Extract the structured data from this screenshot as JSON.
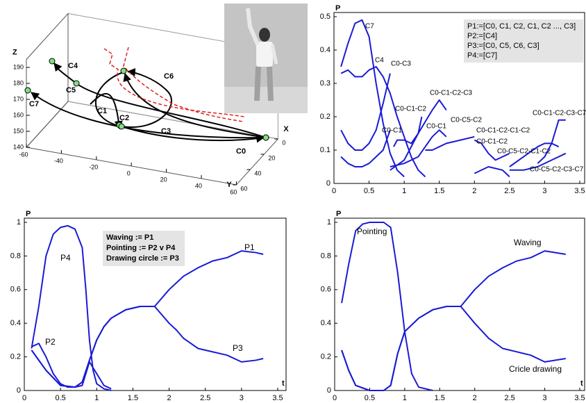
{
  "chart_data": [
    {
      "type": "trajectory3d",
      "xlabel": "X",
      "ylabel": "Y",
      "zlabel": "Z",
      "xlim": [
        0,
        60
      ],
      "ylim": [
        -60,
        60
      ],
      "zlim": [
        140,
        195
      ],
      "xticks": [
        0,
        20,
        40,
        60
      ],
      "yticks": [
        -60,
        -40,
        -20,
        0,
        20,
        40,
        60
      ],
      "zticks": [
        140,
        150,
        160,
        170,
        180,
        190
      ],
      "nodes": [
        "C0",
        "C1",
        "C2",
        "C3",
        "C4",
        "C5",
        "C6",
        "C7"
      ]
    },
    {
      "type": "line",
      "ylabel": "P",
      "color": "#1a1ad6",
      "xlim": [
        0,
        3.5
      ],
      "ylim": [
        0,
        0.5
      ],
      "xticks": [
        0,
        0.5,
        1,
        1.5,
        2,
        2.5,
        3,
        3.5
      ],
      "yticks": [
        0,
        0.1,
        0.2,
        0.3,
        0.4,
        0.5
      ],
      "legend_text": [
        "P1:=[C0, C1, C2, C1, C2 ..., C3]",
        "P2:=[C4]",
        "P3:=[C0, C5, C6, C3]",
        "P4:=[C7]"
      ],
      "series": [
        {
          "name": "C7",
          "x": [
            0.1,
            0.2,
            0.3,
            0.4,
            0.5,
            0.6,
            0.7,
            0.8,
            0.9,
            1.0
          ],
          "values": [
            0.35,
            0.42,
            0.48,
            0.49,
            0.44,
            0.3,
            0.18,
            0.09,
            0.04,
            0.02
          ]
        },
        {
          "name": "C4",
          "x": [
            0.1,
            0.2,
            0.3,
            0.4,
            0.5,
            0.6,
            0.7,
            0.8,
            0.9,
            1.0,
            1.1,
            1.2,
            1.3
          ],
          "values": [
            0.33,
            0.34,
            0.32,
            0.32,
            0.34,
            0.35,
            0.32,
            0.27,
            0.2,
            0.14,
            0.08,
            0.04,
            0.02
          ]
        },
        {
          "name": "C0-C3",
          "x": [
            0.1,
            0.2,
            0.3,
            0.4,
            0.5,
            0.6,
            0.7,
            0.8
          ],
          "values": [
            0.16,
            0.12,
            0.1,
            0.1,
            0.12,
            0.16,
            0.24,
            0.33
          ]
        },
        {
          "name": "C0-C1",
          "x": [
            0.1,
            0.2,
            0.3,
            0.4,
            0.5,
            0.6,
            0.7,
            0.8
          ],
          "values": [
            0.08,
            0.06,
            0.05,
            0.05,
            0.06,
            0.08,
            0.1,
            0.16
          ]
        },
        {
          "name": "C0-C1-C2",
          "x": [
            0.85,
            0.9,
            1.0,
            1.1,
            1.2,
            1.25
          ],
          "values": [
            0.11,
            0.13,
            0.13,
            0.12,
            0.15,
            0.2
          ]
        },
        {
          "name": "C0-C1-C2-C3",
          "x": [
            0.8,
            1.0,
            1.2,
            1.4,
            1.5,
            1.6
          ],
          "values": [
            0.04,
            0.07,
            0.15,
            0.22,
            0.25,
            0.22
          ]
        },
        {
          "name": "C0-C1",
          "x": [
            0.8,
            1.0,
            1.2,
            1.4,
            1.5,
            1.6
          ],
          "values": [
            0.05,
            0.06,
            0.08,
            0.14,
            0.16,
            0.14
          ]
        },
        {
          "name": "C0-C5-C2",
          "x": [
            1.3,
            1.4,
            1.6,
            1.8,
            2.0
          ],
          "values": [
            0.1,
            0.1,
            0.12,
            0.13,
            0.14
          ]
        },
        {
          "name": "C0-C1-C2-C1-C2",
          "x": [
            2.0,
            2.1,
            2.2,
            2.3,
            2.4,
            2.5
          ],
          "values": [
            0.13,
            0.12,
            0.09,
            0.07,
            0.08,
            0.09
          ]
        },
        {
          "name": "C0-C1-C2",
          "x": [
            2.0,
            2.2,
            2.4,
            2.5
          ],
          "values": [
            0.03,
            0.05,
            0.04,
            0.02
          ]
        },
        {
          "name": "C0-C5-C2-C1-C2",
          "x": [
            2.5,
            2.7,
            2.9,
            3.0,
            3.1,
            3.2
          ],
          "values": [
            0.05,
            0.08,
            0.11,
            0.12,
            0.12,
            0.11
          ]
        },
        {
          "name": "C0-C1-C2-C3-C7",
          "x": [
            2.9,
            3.0,
            3.1,
            3.2,
            3.3
          ],
          "values": [
            0.06,
            0.08,
            0.12,
            0.19,
            0.19
          ]
        },
        {
          "name": "C0-C5-C2-C3-C7",
          "x": [
            2.5,
            2.7,
            2.9,
            3.1,
            3.3
          ],
          "values": [
            0.04,
            0.04,
            0.05,
            0.07,
            0.09
          ]
        }
      ]
    },
    {
      "type": "line",
      "xlabel": "t",
      "ylabel": "P",
      "color": "#1a1ad6",
      "xlim": [
        0,
        3.5
      ],
      "ylim": [
        0,
        1
      ],
      "xticks": [
        0,
        0.5,
        1,
        1.5,
        2,
        2.5,
        3,
        3.5
      ],
      "yticks": [
        0,
        0.2,
        0.4,
        0.6,
        0.8,
        1
      ],
      "legend_text": [
        "Waving := P1",
        "Pointing := P2 v P4",
        "Drawing circle := P3"
      ],
      "series": [
        {
          "name": "P4",
          "x": [
            0.1,
            0.2,
            0.3,
            0.4,
            0.5,
            0.6,
            0.7,
            0.8,
            0.85,
            0.9,
            0.95,
            1.0,
            1.1,
            1.2
          ],
          "values": [
            0.25,
            0.5,
            0.8,
            0.93,
            0.97,
            0.98,
            0.96,
            0.85,
            0.6,
            0.3,
            0.12,
            0.04,
            0.01,
            0
          ]
        },
        {
          "name": "P2",
          "x": [
            0.1,
            0.2,
            0.3,
            0.4,
            0.5,
            0.6,
            0.7,
            0.8,
            0.9,
            1.0,
            1.1,
            1.2
          ],
          "values": [
            0.26,
            0.28,
            0.2,
            0.1,
            0.04,
            0.02,
            0.02,
            0.03,
            0.17,
            0.1,
            0.03,
            0.01
          ]
        },
        {
          "name": "P1",
          "x": [
            0.1,
            0.3,
            0.5,
            0.7,
            0.8,
            0.9,
            1.0,
            1.1,
            1.2,
            1.4,
            1.6,
            1.8,
            2.0,
            2.1,
            2.2,
            2.4,
            2.6,
            2.8,
            3.0,
            3.2,
            3.3
          ],
          "values": [
            0.24,
            0.12,
            0.03,
            0.02,
            0.05,
            0.18,
            0.3,
            0.38,
            0.43,
            0.48,
            0.5,
            0.5,
            0.6,
            0.64,
            0.68,
            0.73,
            0.77,
            0.79,
            0.83,
            0.82,
            0.81
          ]
        },
        {
          "name": "P3",
          "x": [
            0.1,
            0.3,
            0.5,
            0.7,
            0.8,
            0.9,
            1.0,
            1.1,
            1.2,
            1.4,
            1.6,
            1.8,
            2.0,
            2.1,
            2.2,
            2.4,
            2.6,
            2.8,
            3.0,
            3.2,
            3.3
          ],
          "values": [
            0.24,
            0.12,
            0.03,
            0.02,
            0.05,
            0.18,
            0.3,
            0.38,
            0.43,
            0.48,
            0.5,
            0.5,
            0.4,
            0.36,
            0.31,
            0.25,
            0.23,
            0.21,
            0.17,
            0.18,
            0.19
          ]
        }
      ]
    },
    {
      "type": "line",
      "xlabel": "t",
      "ylabel": "P",
      "color": "#1a1ad6",
      "xlim": [
        0,
        3.5
      ],
      "ylim": [
        0,
        1
      ],
      "xticks": [
        0,
        0.5,
        1,
        1.5,
        2,
        2.5,
        3,
        3.5
      ],
      "yticks": [
        0,
        0.2,
        0.4,
        0.6,
        0.8,
        1
      ],
      "series": [
        {
          "name": "Pointing",
          "x": [
            0.1,
            0.2,
            0.3,
            0.4,
            0.5,
            0.6,
            0.7,
            0.8,
            0.9,
            1.0,
            1.1,
            1.2,
            1.4
          ],
          "values": [
            0.52,
            0.75,
            0.95,
            0.99,
            1,
            1,
            1,
            0.97,
            0.7,
            0.35,
            0.1,
            0.02,
            0
          ]
        },
        {
          "name": "Waving",
          "x": [
            0.1,
            0.2,
            0.3,
            0.5,
            0.7,
            0.8,
            0.9,
            1.0,
            1.2,
            1.4,
            1.6,
            1.8,
            2.0,
            2.2,
            2.4,
            2.6,
            2.8,
            3.0,
            3.3
          ],
          "values": [
            0.24,
            0.12,
            0.03,
            0,
            0,
            0.03,
            0.22,
            0.35,
            0.43,
            0.48,
            0.5,
            0.5,
            0.6,
            0.68,
            0.73,
            0.77,
            0.79,
            0.83,
            0.81
          ]
        },
        {
          "name": "Cricle drawing",
          "x": [
            0.1,
            0.2,
            0.3,
            0.5,
            0.7,
            0.8,
            0.9,
            1.0,
            1.2,
            1.4,
            1.6,
            1.8,
            2.0,
            2.2,
            2.4,
            2.6,
            2.8,
            3.0,
            3.3
          ],
          "values": [
            0.24,
            0.12,
            0.03,
            0,
            0,
            0.03,
            0.22,
            0.35,
            0.43,
            0.48,
            0.5,
            0.5,
            0.4,
            0.31,
            0.25,
            0.23,
            0.21,
            0.17,
            0.19
          ]
        }
      ]
    }
  ]
}
